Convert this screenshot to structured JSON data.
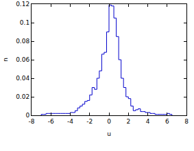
{
  "chart_data": {
    "type": "histogram",
    "xlabel": "u",
    "ylabel": "n",
    "bins": [
      -7.0,
      -6.75,
      -6.5,
      -6.25,
      -6.0,
      -5.75,
      -5.5,
      -5.25,
      -5.0,
      -4.75,
      -4.5,
      -4.25,
      -4.0,
      -3.75,
      -3.5,
      -3.25,
      -3.0,
      -2.75,
      -2.5,
      -2.25,
      -2.0,
      -1.75,
      -1.5,
      -1.25,
      -1.0,
      -0.75,
      -0.5,
      -0.25,
      0.0,
      0.25,
      0.5,
      0.75,
      1.0,
      1.25,
      1.5,
      1.75,
      2.0,
      2.25,
      2.5,
      2.75,
      3.0,
      3.25,
      3.5,
      3.75,
      4.0,
      4.25,
      4.5,
      4.75,
      5.0,
      5.25,
      5.5,
      5.75,
      6.0,
      6.25,
      6.5
    ],
    "values": [
      0.001,
      0.001,
      0.002,
      0.002,
      0.002,
      0.002,
      0.002,
      0.002,
      0.002,
      0.002,
      0.002,
      0.002,
      0.003,
      0.003,
      0.005,
      0.008,
      0.01,
      0.012,
      0.015,
      0.016,
      0.022,
      0.03,
      0.028,
      0.04,
      0.048,
      0.066,
      0.068,
      0.09,
      0.119,
      0.118,
      0.105,
      0.085,
      0.06,
      0.04,
      0.03,
      0.02,
      0.018,
      0.01,
      0.005,
      0.006,
      0.007,
      0.004,
      0.004,
      0.003,
      0.003,
      0.002,
      0.002,
      0.001,
      0.001,
      0.001,
      0.001,
      0.001,
      0.002,
      0.001
    ],
    "color": "#0000cc",
    "xlim": [
      -8,
      8
    ],
    "xticks": [
      -8,
      -6,
      -4,
      -2,
      0,
      2,
      4,
      6,
      8
    ],
    "ylim": [
      0,
      0.12
    ],
    "yticks": [
      0,
      0.02,
      0.04,
      0.06,
      0.08,
      0.1,
      0.12
    ],
    "grid": false
  }
}
